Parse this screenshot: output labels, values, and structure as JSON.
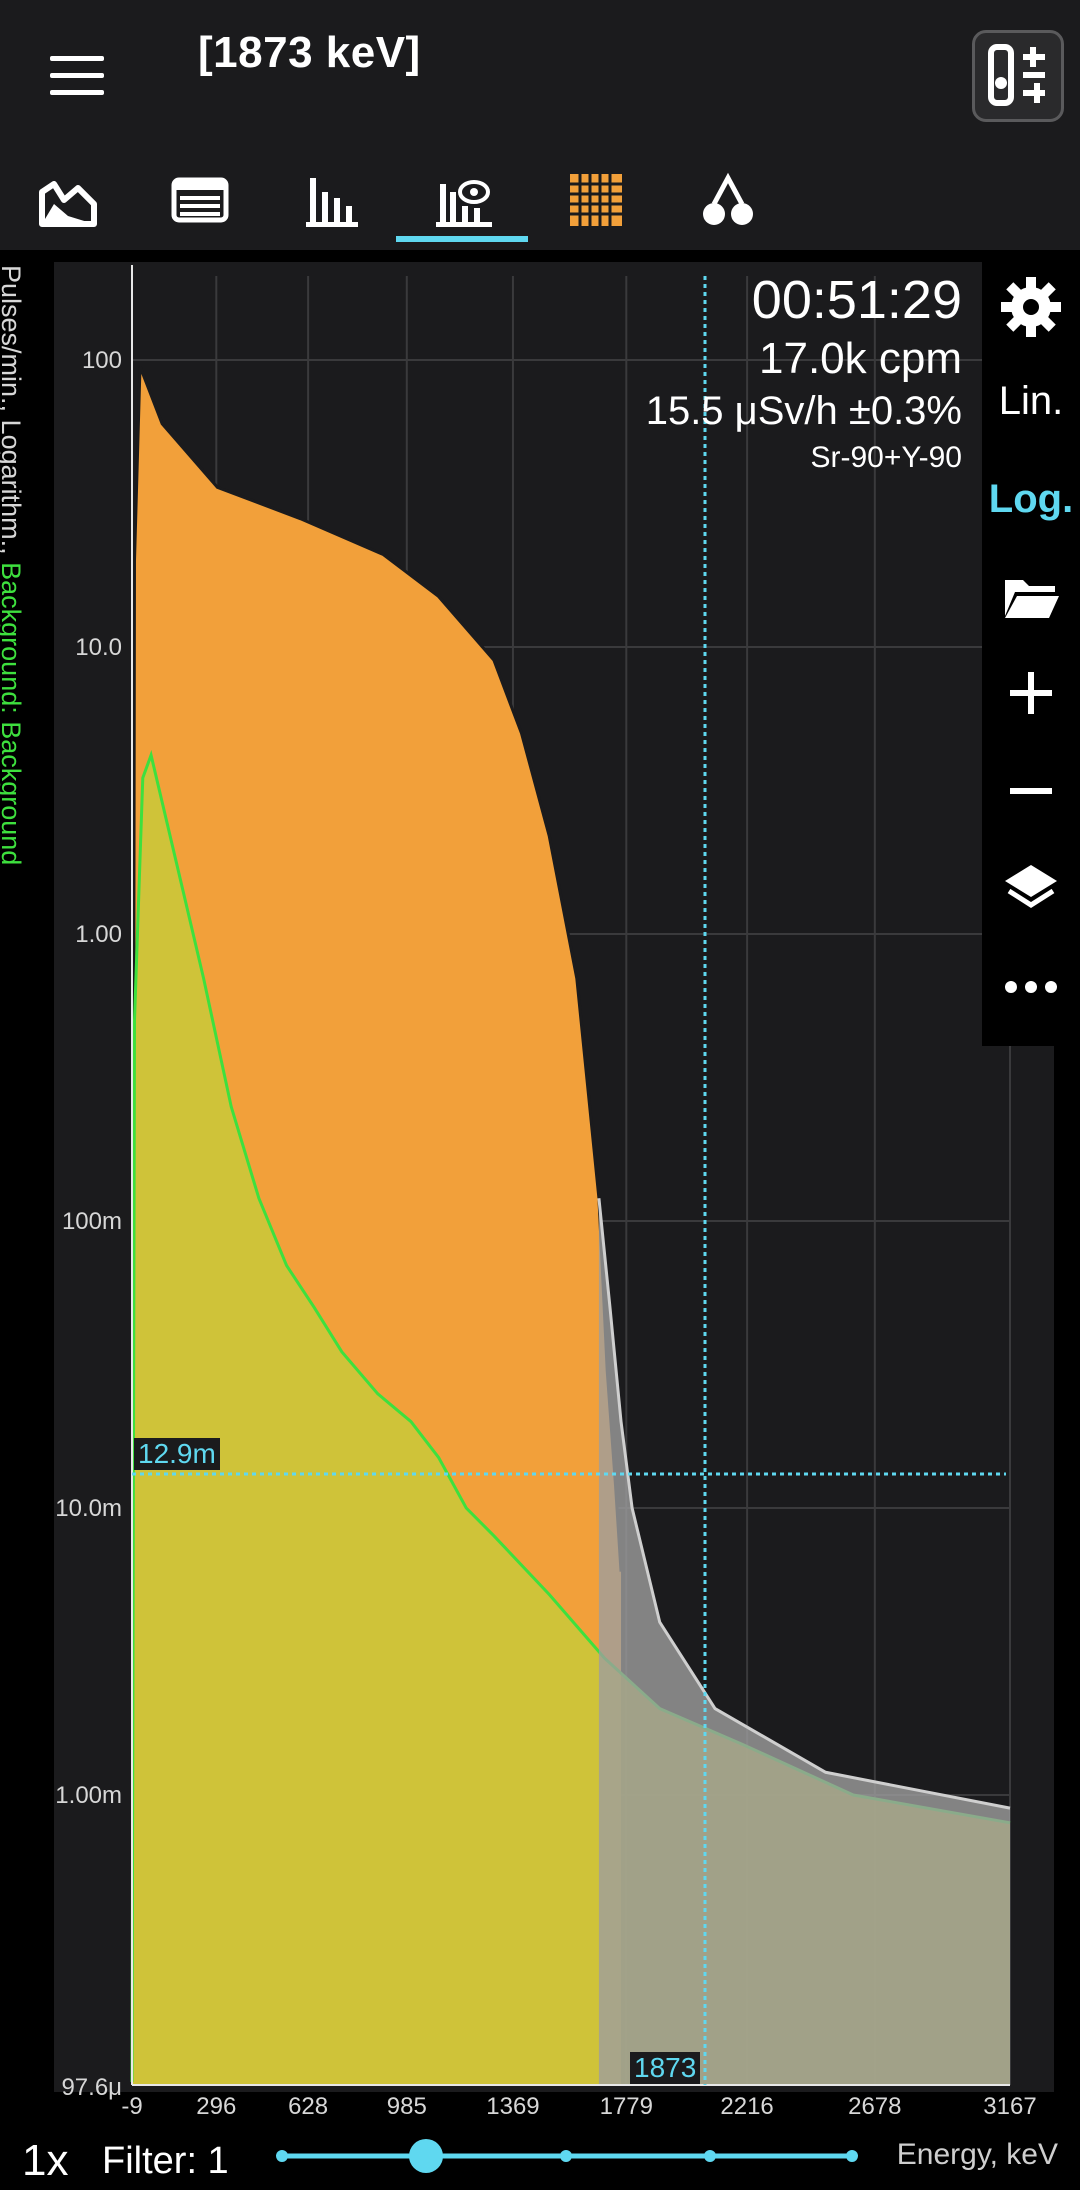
{
  "header": {
    "title": "[1873 keV]"
  },
  "tabs": [
    {
      "icon": "spectrum-area-icon"
    },
    {
      "icon": "table-list-icon"
    },
    {
      "icon": "histogram-bars-icon"
    },
    {
      "icon": "spectrum-view-icon"
    },
    {
      "icon": "grid-map-icon"
    },
    {
      "icon": "isotope-tree-icon"
    }
  ],
  "readout": {
    "timer": "00:51:29",
    "cpm": "17.0k cpm",
    "dose": "15.5 μSv/h ±0.3%",
    "isotope": "Sr-90+Y-90"
  },
  "side": {
    "lin": "Lin.",
    "log": "Log."
  },
  "axis": {
    "ylabel_main": "Pulses/min., Logarithm., ",
    "ylabel_bg": "Background: Background",
    "xunit": "Energy, keV"
  },
  "markers": {
    "y_value": "12.9m",
    "x_value": "1873"
  },
  "bottom": {
    "zoom": "1x",
    "filter": "Filter: 1"
  },
  "chart_data": {
    "type": "area",
    "yscale": "log",
    "y_ticks": [
      "100",
      "10.0",
      "1.00",
      "100m",
      "10.0m",
      "1.00m",
      "97.6μ"
    ],
    "x_ticks": [
      "-9",
      "296",
      "628",
      "985",
      "1369",
      "1779",
      "2216",
      "2678",
      "3167"
    ],
    "series": [
      {
        "color": "#f2a03a",
        "points": [
          [
            -9,
            0.0001
          ],
          [
            0,
            20
          ],
          [
            20,
            95
          ],
          [
            100,
            60
          ],
          [
            300,
            36
          ],
          [
            600,
            28
          ],
          [
            900,
            21
          ],
          [
            1100,
            15
          ],
          [
            1300,
            9
          ],
          [
            1400,
            5
          ],
          [
            1500,
            2.2
          ],
          [
            1600,
            0.7
          ],
          [
            1680,
            0.12
          ],
          [
            1710,
            0.03
          ],
          [
            1740,
            0.012
          ],
          [
            1760,
            0.006
          ]
        ]
      },
      {
        "color": "#3ee03e",
        "points": [
          [
            -9,
            0.0001
          ],
          [
            0,
            0.5
          ],
          [
            30,
            3.5
          ],
          [
            60,
            4.2
          ],
          [
            150,
            1.8
          ],
          [
            250,
            0.7
          ],
          [
            350,
            0.25
          ],
          [
            450,
            0.12
          ],
          [
            550,
            0.07
          ],
          [
            650,
            0.05
          ],
          [
            750,
            0.035
          ],
          [
            880,
            0.025
          ],
          [
            1000,
            0.02
          ],
          [
            1100,
            0.015
          ],
          [
            1200,
            0.01
          ],
          [
            1300,
            0.008
          ],
          [
            1500,
            0.005
          ],
          [
            1700,
            0.003
          ],
          [
            1900,
            0.002
          ],
          [
            2200,
            0.0015
          ],
          [
            2600,
            0.001
          ],
          [
            3167,
            0.0008
          ]
        ]
      },
      {
        "color": "#9e9e9e",
        "points": [
          [
            1680,
            0.12
          ],
          [
            1720,
            0.05
          ],
          [
            1760,
            0.02
          ],
          [
            1800,
            0.01
          ],
          [
            1900,
            0.004
          ],
          [
            2100,
            0.002
          ],
          [
            2500,
            0.0012
          ],
          [
            3167,
            0.0009
          ]
        ]
      }
    ]
  }
}
